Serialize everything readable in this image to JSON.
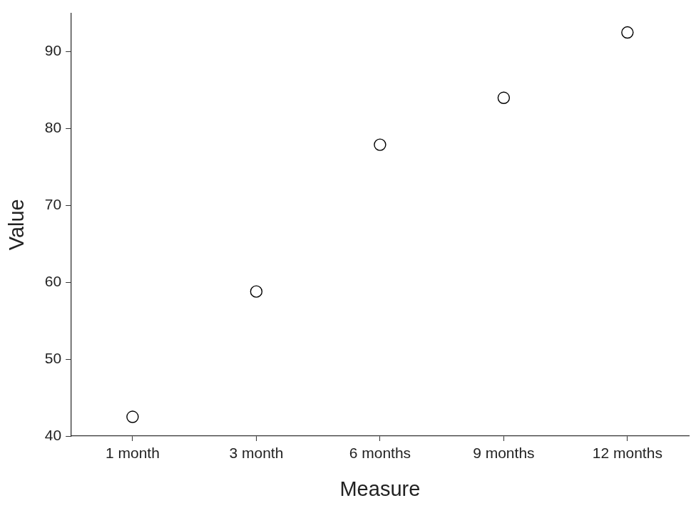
{
  "chart_data": {
    "type": "scatter",
    "x_label": "Measure",
    "y_label": "Value",
    "categories": [
      "1 month",
      "3 month",
      "6 months",
      "9 months",
      "12 months"
    ],
    "values": [
      42.5,
      58.8,
      77.9,
      84.0,
      92.5
    ],
    "color": "#000000",
    "marker": "circle",
    "ylim": [
      40,
      95
    ],
    "yticks": [
      40,
      50,
      60,
      70,
      80,
      90
    ],
    "grid": false
  }
}
